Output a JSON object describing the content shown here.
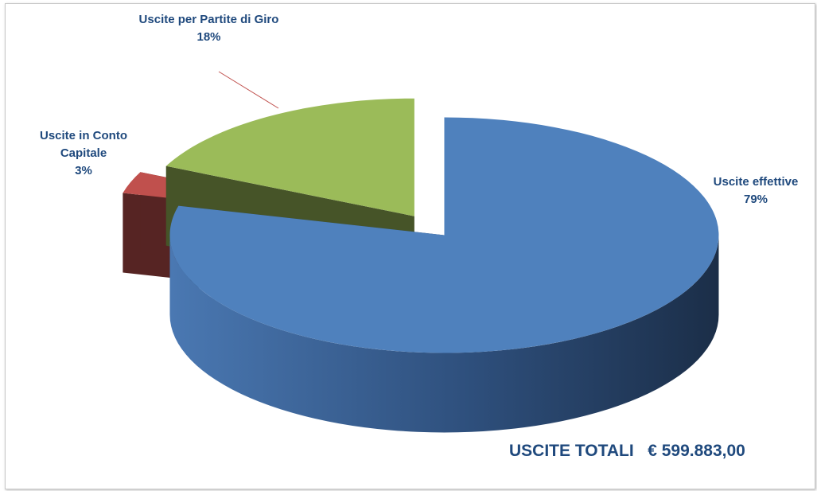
{
  "chart_data": {
    "type": "pie3d",
    "categories": [
      "Uscite effettive",
      "Uscite in Conto Capitale",
      "Uscite per Partite di Giro"
    ],
    "values": [
      79,
      3,
      18
    ],
    "value_labels": [
      "79%",
      "3%",
      "18%"
    ],
    "colors": [
      "#4f81bd",
      "#c0504d",
      "#9bbb59"
    ],
    "annotation": "USCITE TOTALI   € 599.883,00"
  }
}
